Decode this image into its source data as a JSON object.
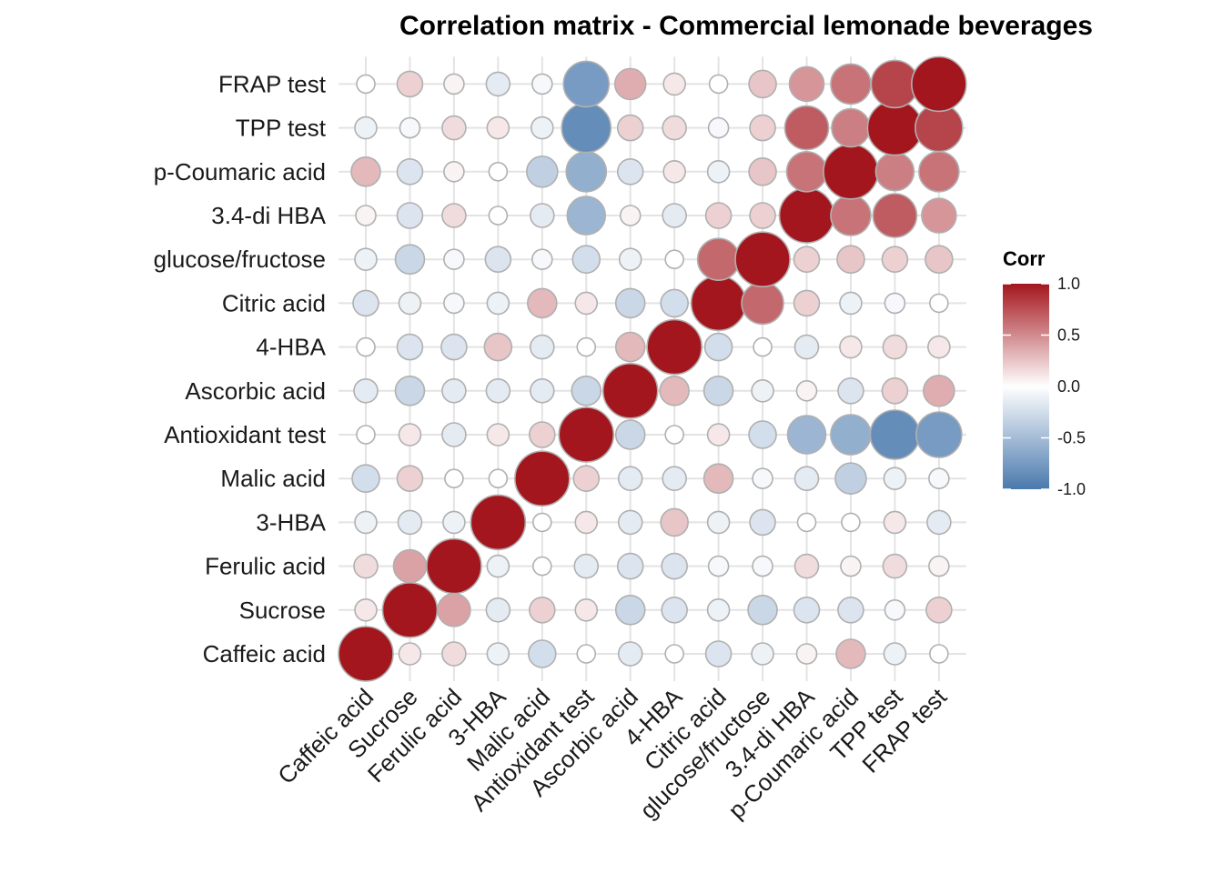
{
  "chart_data": {
    "type": "heatmap",
    "title": "Correlation matrix - Commercial lemonade beverages",
    "xlabel": "",
    "ylabel": "",
    "variables": [
      "Caffeic acid",
      "Sucrose",
      "Ferulic acid",
      "3-HBA",
      "Malic acid",
      "Antioxidant test",
      "Ascorbic acid",
      "4-HBA",
      "Citric acid",
      "glucose/fructose",
      "3.4-di HBA",
      "p-Coumaric acid",
      "TPP test",
      "FRAP test"
    ],
    "matrix": [
      [
        1.0,
        0.1,
        0.15,
        -0.1,
        -0.25,
        0.0,
        -0.15,
        0.0,
        -0.2,
        -0.1,
        0.05,
        0.3,
        -0.1,
        0.0
      ],
      [
        0.1,
        1.0,
        0.4,
        -0.15,
        0.2,
        0.1,
        -0.3,
        -0.2,
        -0.1,
        -0.3,
        -0.2,
        -0.2,
        -0.05,
        0.2
      ],
      [
        0.15,
        0.4,
        1.0,
        -0.1,
        0.0,
        -0.15,
        -0.2,
        -0.2,
        -0.05,
        -0.05,
        0.15,
        0.05,
        0.15,
        0.05
      ],
      [
        -0.1,
        -0.15,
        -0.1,
        1.0,
        0.0,
        0.1,
        -0.15,
        0.25,
        -0.1,
        -0.2,
        0.0,
        0.0,
        0.1,
        -0.15
      ],
      [
        -0.25,
        0.2,
        0.0,
        0.0,
        1.0,
        0.2,
        -0.15,
        -0.15,
        0.3,
        -0.05,
        -0.15,
        -0.35,
        -0.1,
        -0.05
      ],
      [
        0.0,
        0.1,
        -0.15,
        0.1,
        0.2,
        1.0,
        -0.3,
        0.0,
        0.1,
        -0.25,
        -0.55,
        -0.6,
        -0.85,
        -0.75
      ],
      [
        -0.15,
        -0.3,
        -0.15,
        -0.15,
        -0.15,
        -0.3,
        1.0,
        0.3,
        -0.3,
        -0.1,
        0.05,
        -0.2,
        0.2,
        0.35
      ],
      [
        0.0,
        -0.2,
        -0.2,
        0.25,
        -0.15,
        0.0,
        0.3,
        1.0,
        -0.25,
        0.0,
        -0.15,
        0.1,
        0.15,
        0.1
      ],
      [
        -0.2,
        -0.1,
        -0.05,
        -0.1,
        0.3,
        0.1,
        -0.3,
        -0.25,
        1.0,
        0.65,
        0.2,
        -0.1,
        -0.05,
        0.0
      ],
      [
        -0.1,
        -0.3,
        -0.05,
        -0.2,
        -0.05,
        -0.25,
        -0.1,
        0.0,
        0.65,
        1.0,
        0.2,
        0.25,
        0.2,
        0.25
      ],
      [
        0.05,
        -0.2,
        0.15,
        0.0,
        -0.15,
        -0.55,
        0.05,
        -0.15,
        0.2,
        0.2,
        1.0,
        0.6,
        0.7,
        0.45
      ],
      [
        0.3,
        -0.2,
        0.05,
        0.0,
        -0.35,
        -0.6,
        -0.2,
        0.1,
        -0.1,
        0.25,
        0.6,
        1.0,
        0.55,
        0.6
      ],
      [
        -0.1,
        -0.05,
        0.15,
        0.1,
        -0.1,
        -0.85,
        0.2,
        0.15,
        -0.05,
        0.2,
        0.7,
        0.55,
        1.0,
        0.8
      ],
      [
        0.0,
        0.2,
        0.05,
        -0.15,
        -0.05,
        -0.75,
        0.35,
        0.1,
        0.0,
        0.25,
        0.45,
        0.6,
        0.8,
        1.0
      ]
    ],
    "size_and_color_encode": "correlation",
    "color_scale": {
      "low": "#4a79ad",
      "mid": "#ffffff",
      "high": "#a3161d",
      "limits": [
        -1.0,
        1.0
      ]
    },
    "legend": {
      "title": "Corr",
      "position": "right",
      "ticks": [
        "1.0",
        "0.5",
        "0.0",
        "-0.5",
        "-1.0"
      ]
    },
    "grid": true
  }
}
